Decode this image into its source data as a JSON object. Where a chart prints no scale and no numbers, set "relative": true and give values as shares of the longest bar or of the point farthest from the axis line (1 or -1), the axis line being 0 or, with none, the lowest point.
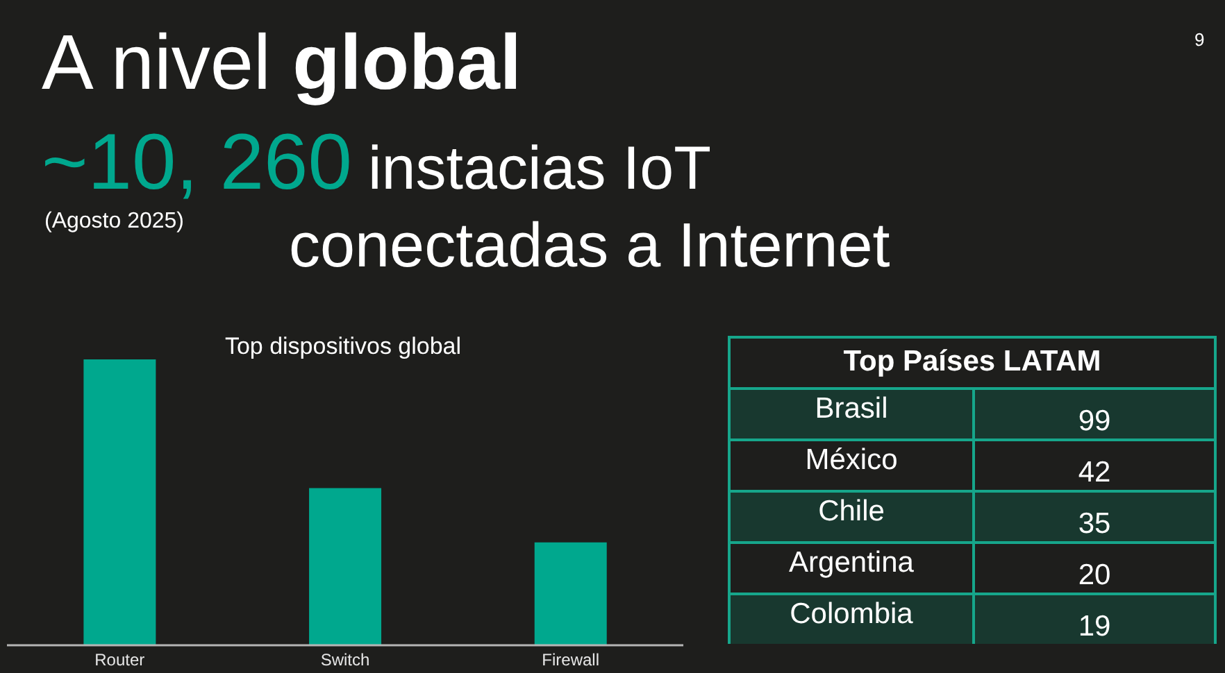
{
  "chart_data": [
    {
      "type": "bar",
      "title": "Top dispositivos global",
      "categories": [
        "Router",
        "Switch",
        "Firewall"
      ],
      "values": [
        1,
        0.55,
        0.36
      ],
      "color": "#00a88e",
      "relative": true,
      "annotations": [
        "A nivel global",
        "~10, 260",
        "instacias IoT",
        "(Agosto 2025)",
        "conectadas a Internet",
        "9"
      ]
    },
    {
      "type": "other",
      "title": "Top Países LATAM",
      "categories": [
        "Brasil",
        "México",
        "Chile",
        "Argentina",
        "Colombia"
      ],
      "values": [
        99,
        42,
        35,
        20,
        19
      ],
      "data_labels": true
    }
  ]
}
